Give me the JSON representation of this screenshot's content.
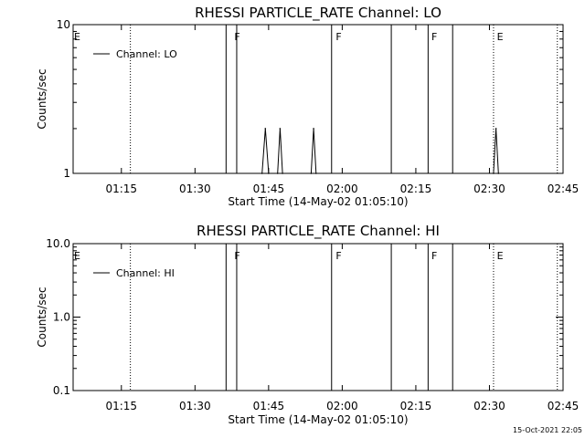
{
  "timestamp": "15-Oct-2021 22:05",
  "chart_data": [
    {
      "type": "line",
      "title": "RHESSI PARTICLE_RATE Channel: LO",
      "xlabel": "Start Time (14-May-02 01:05:10)",
      "ylabel": "Counts/sec",
      "yscale": "log",
      "ylim": [
        1,
        10
      ],
      "xlim": [
        "01:05:10",
        "02:45:00"
      ],
      "y_ticks": [
        {
          "v": 1,
          "label": "1"
        },
        {
          "v": 10,
          "label": "10"
        }
      ],
      "x_ticks": [
        {
          "t": "01:15",
          "label": "01:15"
        },
        {
          "t": "01:30",
          "label": "01:30"
        },
        {
          "t": "01:45",
          "label": "01:45"
        },
        {
          "t": "02:00",
          "label": "02:00"
        },
        {
          "t": "02:15",
          "label": "02:15"
        },
        {
          "t": "02:30",
          "label": "02:30"
        },
        {
          "t": "02:45",
          "label": "02:45"
        }
      ],
      "legend": {
        "label": "Channel: LO",
        "position": "top-left"
      },
      "series": [
        {
          "name": "Channel: LO",
          "x": [
            "01:43:40",
            "01:44:20",
            "01:45:00",
            "01:46:50",
            "01:47:20",
            "01:47:50",
            "01:53:40",
            "01:54:10",
            "01:54:40",
            "02:30:50",
            "02:31:20",
            "02:31:50"
          ],
          "y": [
            1,
            2,
            1,
            1,
            2,
            1,
            1,
            2,
            1,
            1,
            2,
            1
          ]
        }
      ],
      "solid_lines": [
        "01:36:20",
        "01:38:30",
        "01:57:50",
        "02:10:00",
        "02:17:30",
        "02:22:30"
      ],
      "dotted_lines": [
        "01:16:50",
        "02:30:50",
        "02:43:50"
      ],
      "flags": [
        {
          "t": "01:05:10",
          "label": "E"
        },
        {
          "t": "01:37:50",
          "label": "F"
        },
        {
          "t": "01:58:30",
          "label": "F"
        },
        {
          "t": "02:18:00",
          "label": "F"
        },
        {
          "t": "02:31:20",
          "label": "E"
        }
      ]
    },
    {
      "type": "line",
      "title": "RHESSI PARTICLE_RATE Channel: HI",
      "xlabel": "Start Time (14-May-02 01:05:10)",
      "ylabel": "Counts/sec",
      "yscale": "log",
      "ylim": [
        0.1,
        10
      ],
      "xlim": [
        "01:05:10",
        "02:45:00"
      ],
      "y_ticks": [
        {
          "v": 0.1,
          "label": "0.1"
        },
        {
          "v": 1,
          "label": "1.0"
        },
        {
          "v": 10,
          "label": "10.0"
        }
      ],
      "x_ticks": [
        {
          "t": "01:15",
          "label": "01:15"
        },
        {
          "t": "01:30",
          "label": "01:30"
        },
        {
          "t": "01:45",
          "label": "01:45"
        },
        {
          "t": "02:00",
          "label": "02:00"
        },
        {
          "t": "02:15",
          "label": "02:15"
        },
        {
          "t": "02:30",
          "label": "02:30"
        },
        {
          "t": "02:45",
          "label": "02:45"
        }
      ],
      "legend": {
        "label": "Channel: HI",
        "position": "top-left"
      },
      "series": [
        {
          "name": "Channel: HI",
          "x": [],
          "y": []
        }
      ],
      "solid_lines": [
        "01:36:20",
        "01:38:30",
        "01:57:50",
        "02:10:00",
        "02:17:30",
        "02:22:30"
      ],
      "dotted_lines": [
        "01:16:50",
        "02:30:50",
        "02:43:50"
      ],
      "flags": [
        {
          "t": "01:05:10",
          "label": "E"
        },
        {
          "t": "01:37:50",
          "label": "F"
        },
        {
          "t": "01:58:30",
          "label": "F"
        },
        {
          "t": "02:18:00",
          "label": "F"
        },
        {
          "t": "02:31:20",
          "label": "E"
        }
      ]
    }
  ]
}
